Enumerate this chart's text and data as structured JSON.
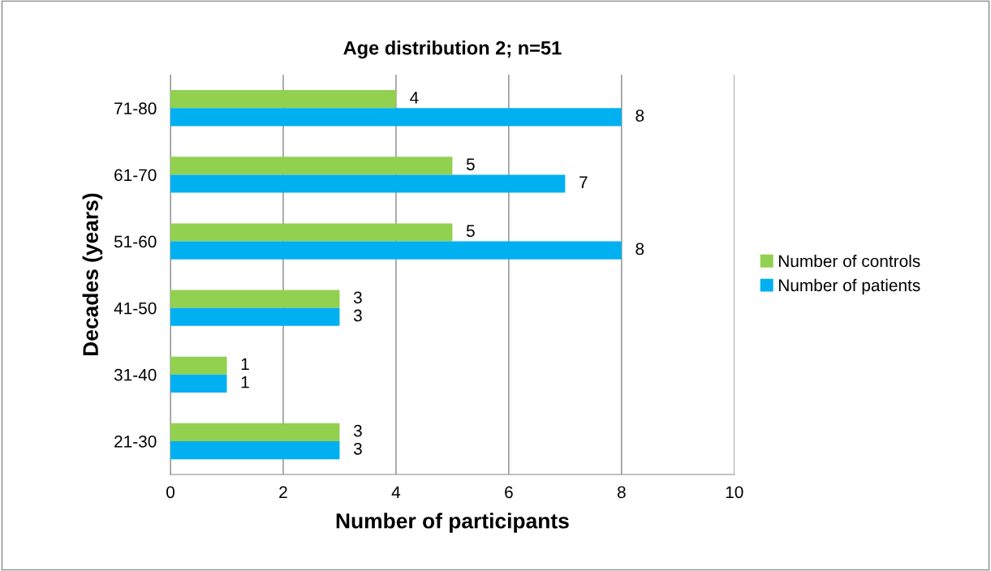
{
  "chart_data": {
    "type": "bar",
    "orientation": "horizontal",
    "title": "Age distribution 2; n=51",
    "xlabel": "Number of participants",
    "ylabel": "Decades (years)",
    "categories": [
      "71-80",
      "61-70",
      "51-60",
      "41-50",
      "31-40",
      "21-30"
    ],
    "series": [
      {
        "name": "Number of controls",
        "color": "#92d050",
        "values": [
          4,
          5,
          5,
          3,
          1,
          3
        ]
      },
      {
        "name": "Number of patients",
        "color": "#00b0f0",
        "values": [
          8,
          7,
          8,
          3,
          1,
          3
        ]
      }
    ],
    "xlim": [
      0,
      10
    ],
    "xticks": [
      0,
      2,
      4,
      6,
      8,
      10
    ],
    "grid": "x",
    "legend": "right",
    "data_labels": true
  }
}
